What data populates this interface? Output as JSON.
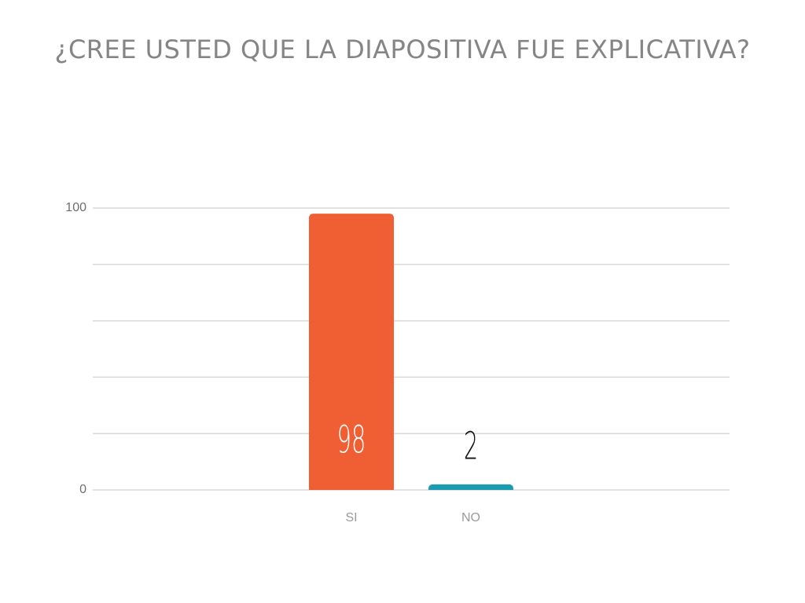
{
  "chart_data": {
    "type": "bar",
    "title": "¿CREE  USTED QUE LA DIAPOSITIVA FUE EXPLICATIVA?",
    "categories": [
      "SI",
      "NO"
    ],
    "values": [
      98,
      2
    ],
    "colors": [
      "#f05f34",
      "#1a9bb0"
    ],
    "ylim": [
      0,
      100
    ],
    "yticks": [
      0,
      100
    ],
    "minor_yticks": [
      20,
      40,
      60,
      80
    ],
    "grid": true
  }
}
